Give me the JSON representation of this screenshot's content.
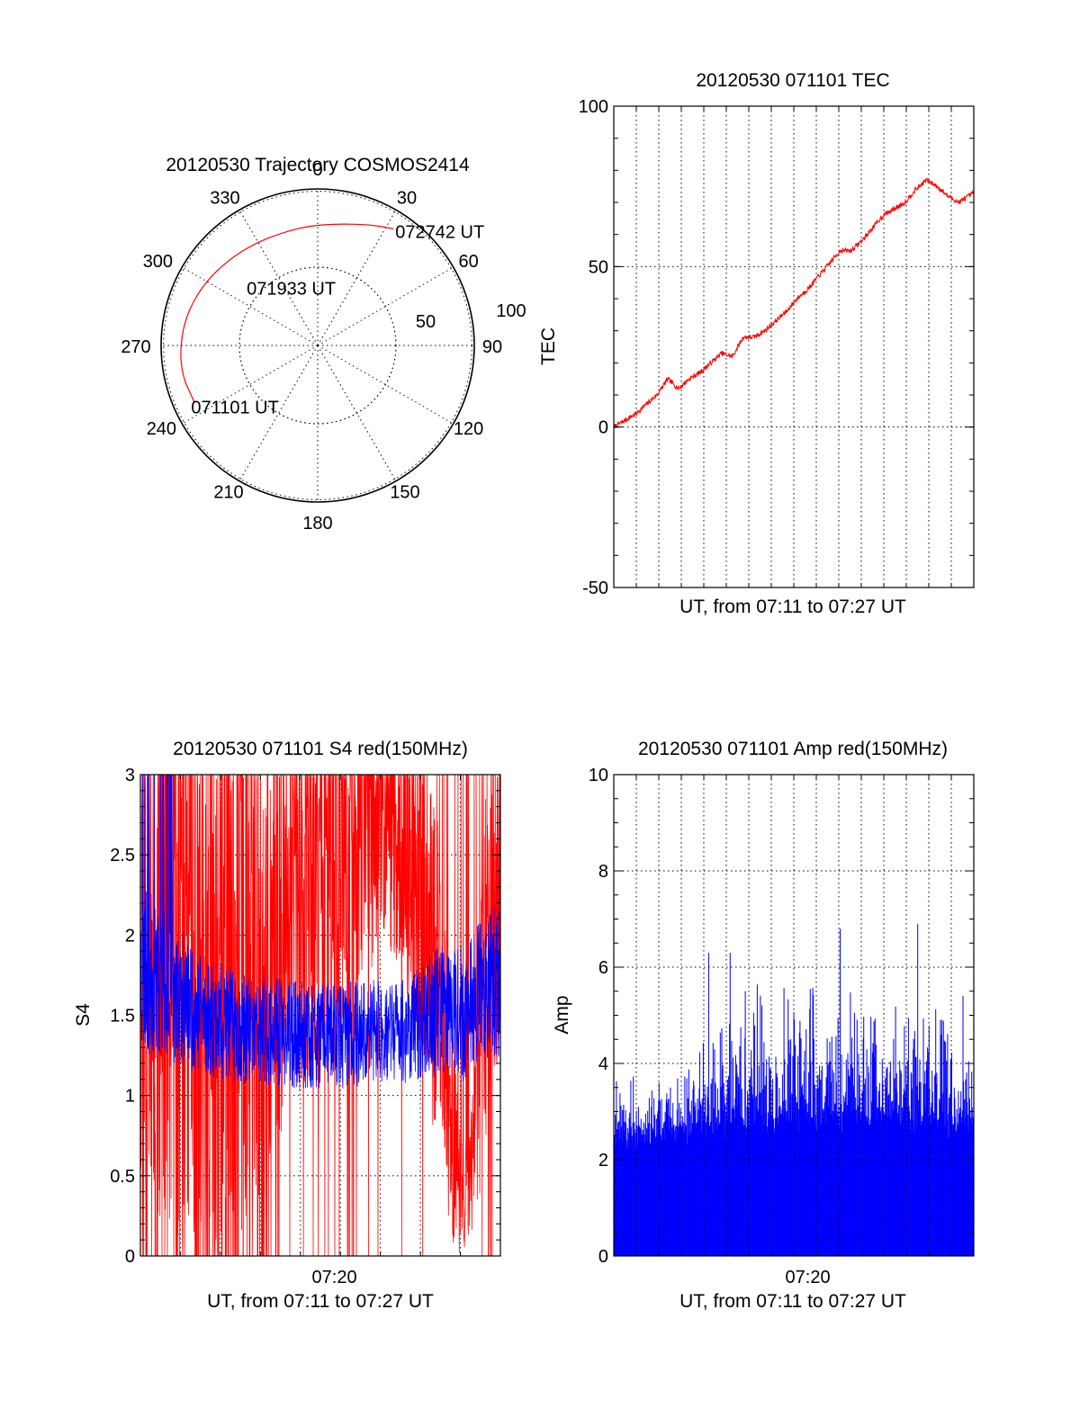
{
  "figure": {
    "colors": {
      "red": "#ff0000",
      "blue": "#0000ff",
      "axis": "#000000"
    }
  },
  "chart_data": [
    {
      "id": "trajectory",
      "type": "polar",
      "title": "20120530 Trajectory COSMOS2414",
      "angle_labels": [
        "0",
        "30",
        "60",
        "90",
        "120",
        "150",
        "180",
        "210",
        "240",
        "270",
        "300",
        "330"
      ],
      "radial_labels": [
        "50",
        "100"
      ],
      "radial_max": 100,
      "series": [
        {
          "color": "#ff0000",
          "points": [
            {
              "azimuth": 245,
              "elevation": 12
            },
            {
              "azimuth": 258,
              "elevation": 10
            },
            {
              "azimuth": 272,
              "elevation": 11
            },
            {
              "azimuth": 286,
              "elevation": 13
            },
            {
              "azimuth": 300,
              "elevation": 16
            },
            {
              "azimuth": 314,
              "elevation": 19
            },
            {
              "azimuth": 328,
              "elevation": 21
            },
            {
              "azimuth": 342,
              "elevation": 22
            },
            {
              "azimuth": 356,
              "elevation": 21
            },
            {
              "azimuth": 10,
              "elevation": 19
            },
            {
              "azimuth": 24,
              "elevation": 14
            },
            {
              "azimuth": 33,
              "elevation": 10
            }
          ]
        }
      ],
      "annotations": [
        {
          "text": "071101 UT",
          "azimuth": 245,
          "elevation": 12
        },
        {
          "text": "071933 UT",
          "azimuth": 342,
          "elevation": 55
        },
        {
          "text": "072742 UT",
          "azimuth": 33,
          "elevation": 10
        }
      ]
    },
    {
      "id": "tec",
      "type": "line",
      "title": "20120530 071101 TEC",
      "xlabel": "UT, from 07:11 to 07:27 UT",
      "ylabel": "TEC",
      "xlim": [
        0,
        16.7
      ],
      "ylim": [
        -50,
        100
      ],
      "yticks": [
        "-50",
        "0",
        "50",
        "100"
      ],
      "grid": true,
      "series": [
        {
          "color": "#ff0000",
          "x": [
            0,
            0.5,
            1.0,
            1.5,
            2.0,
            2.5,
            3.0,
            3.5,
            4.0,
            4.5,
            5.0,
            5.5,
            6.0,
            6.5,
            7.0,
            7.5,
            8.0,
            8.5,
            9.0,
            9.5,
            10.0,
            10.5,
            11.0,
            11.5,
            12.0,
            12.5,
            13.0,
            13.5,
            14.0,
            14.5,
            15.0,
            15.5,
            16.0,
            16.7
          ],
          "y": [
            0,
            2,
            4,
            7,
            10,
            15,
            12,
            15,
            17,
            20,
            23,
            22,
            28,
            28,
            30,
            33,
            36,
            40,
            43,
            47,
            51,
            55,
            55,
            58,
            62,
            66,
            68,
            70,
            74,
            77,
            75,
            72,
            70,
            73
          ]
        }
      ]
    },
    {
      "id": "s4",
      "type": "line",
      "title": "20120530 071101 S4 red(150MHz)",
      "xlabel": "UT, from 07:11 to 07:27 UT",
      "ylabel": "S4",
      "xlim": [
        0,
        16.7
      ],
      "ylim": [
        0,
        3
      ],
      "yticks": [
        "0",
        "0.5",
        "1",
        "1.5",
        "2",
        "2.5",
        "3"
      ],
      "xticks": [
        {
          "value": 9.0,
          "label": "07:20"
        }
      ],
      "grid": true,
      "series": [
        {
          "color": "#ff0000",
          "envelope": {
            "x": [
              0,
              1,
              2,
              3,
              4,
              5,
              6,
              7,
              8,
              9,
              10,
              11,
              12,
              13,
              14,
              14.5,
              15,
              15.5,
              16,
              16.7
            ],
            "mean": [
              2.2,
              2.1,
              2.0,
              1.9,
              1.8,
              1.7,
              1.9,
              2.1,
              2.3,
              2.4,
              2.5,
              2.7,
              2.6,
              2.3,
              1.5,
              0.7,
              0.3,
              0.6,
              1.8,
              2.2
            ],
            "spread": [
              1.5,
              1.5,
              1.5,
              1.4,
              1.3,
              1.2,
              1.0,
              0.9,
              0.9,
              0.9,
              0.8,
              0.6,
              0.6,
              0.8,
              0.8,
              0.5,
              0.25,
              0.4,
              0.9,
              0.8
            ]
          }
        },
        {
          "color": "#0000ff",
          "envelope": {
            "x": [
              0,
              1,
              2,
              3,
              4,
              5,
              6,
              7,
              8,
              9,
              10,
              11,
              12,
              13,
              14,
              14.5,
              15,
              15.5,
              16,
              16.7
            ],
            "mean": [
              1.8,
              1.7,
              1.6,
              1.5,
              1.45,
              1.4,
              1.4,
              1.38,
              1.38,
              1.38,
              1.38,
              1.4,
              1.4,
              1.45,
              1.55,
              1.6,
              1.5,
              1.6,
              1.7,
              1.7
            ],
            "spread": [
              0.45,
              0.4,
              0.35,
              0.32,
              0.3,
              0.28,
              0.28,
              0.28,
              0.28,
              0.28,
              0.28,
              0.28,
              0.28,
              0.3,
              0.35,
              0.35,
              0.35,
              0.35,
              0.4,
              0.4
            ]
          }
        }
      ]
    },
    {
      "id": "amp",
      "type": "bar",
      "title": "20120530 071101 Amp red(150MHz)",
      "xlabel": "UT, from 07:11 to 07:27 UT",
      "ylabel": "Amp",
      "xlim": [
        0,
        16.7
      ],
      "ylim": [
        0,
        10
      ],
      "yticks": [
        "0",
        "2",
        "4",
        "6",
        "8",
        "10"
      ],
      "xticks": [
        {
          "value": 9.0,
          "label": "07:20"
        }
      ],
      "grid": true,
      "series": [
        {
          "color": "#0000ff",
          "envelope": {
            "x": [
              0,
              2,
              4,
              6,
              8,
              10,
              12,
              14,
              16,
              16.7
            ],
            "base": [
              2.6,
              2.7,
              2.8,
              2.9,
              3.0,
              3.0,
              3.0,
              3.0,
              2.9,
              2.9
            ],
            "peak": [
              3.6,
              3.8,
              4.4,
              5.5,
              5.6,
              5.8,
              5.3,
              5.5,
              5.0,
              4.8
            ]
          },
          "highlights": [
            {
              "x": 4.4,
              "y": 6.3
            },
            {
              "x": 5.4,
              "y": 6.3
            },
            {
              "x": 6.1,
              "y": 5.5
            },
            {
              "x": 10.5,
              "y": 6.8
            },
            {
              "x": 14.1,
              "y": 6.9
            },
            {
              "x": 16.2,
              "y": 5.4
            }
          ]
        }
      ]
    }
  ]
}
